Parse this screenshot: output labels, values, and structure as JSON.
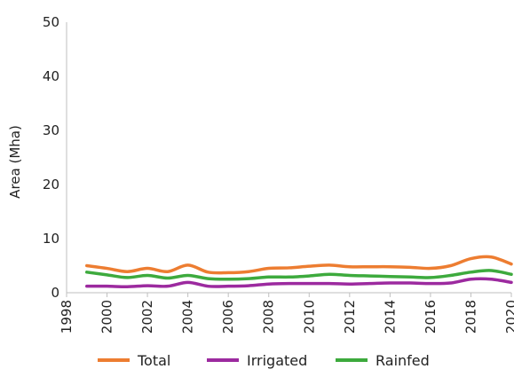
{
  "chart_data": {
    "type": "line",
    "title": "",
    "xlabel": "",
    "ylabel": "Area (Mha)",
    "xlim": [
      1998,
      2020
    ],
    "ylim": [
      0,
      50
    ],
    "x_ticks": [
      1998,
      2000,
      2002,
      2004,
      2006,
      2008,
      2010,
      2012,
      2014,
      2016,
      2018,
      2020
    ],
    "y_ticks": [
      0,
      10,
      20,
      30,
      40,
      50
    ],
    "grid": false,
    "legend_position": "bottom",
    "x": [
      1999,
      2000,
      2001,
      2002,
      2003,
      2004,
      2005,
      2006,
      2007,
      2008,
      2009,
      2010,
      2011,
      2012,
      2013,
      2014,
      2015,
      2016,
      2017,
      2018,
      2019,
      2020
    ],
    "series": [
      {
        "name": "Total",
        "color": "#ED7D31",
        "values": [
          5.0,
          4.5,
          3.9,
          4.5,
          3.9,
          5.1,
          3.8,
          3.7,
          3.9,
          4.5,
          4.6,
          4.9,
          5.1,
          4.8,
          4.8,
          4.8,
          4.7,
          4.5,
          5.0,
          6.3,
          6.6,
          5.3
        ]
      },
      {
        "name": "Irrigated",
        "color": "#9C2A9F",
        "values": [
          1.2,
          1.2,
          1.1,
          1.3,
          1.2,
          1.9,
          1.2,
          1.2,
          1.3,
          1.6,
          1.7,
          1.7,
          1.7,
          1.6,
          1.7,
          1.8,
          1.8,
          1.7,
          1.8,
          2.5,
          2.5,
          1.9
        ]
      },
      {
        "name": "Rainfed",
        "color": "#3DAA3D",
        "values": [
          3.8,
          3.3,
          2.8,
          3.2,
          2.7,
          3.2,
          2.6,
          2.5,
          2.6,
          2.9,
          2.9,
          3.1,
          3.4,
          3.2,
          3.1,
          3.0,
          2.9,
          2.8,
          3.2,
          3.8,
          4.1,
          3.4
        ]
      }
    ]
  }
}
